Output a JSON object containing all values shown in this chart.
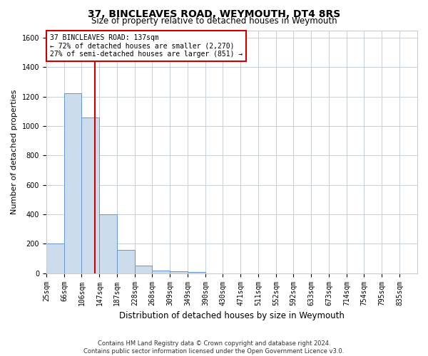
{
  "title": "37, BINCLEAVES ROAD, WEYMOUTH, DT4 8RS",
  "subtitle": "Size of property relative to detached houses in Weymouth",
  "xlabel": "Distribution of detached houses by size in Weymouth",
  "ylabel": "Number of detached properties",
  "bin_labels": [
    "25sqm",
    "66sqm",
    "106sqm",
    "147sqm",
    "187sqm",
    "228sqm",
    "268sqm",
    "309sqm",
    "349sqm",
    "390sqm",
    "430sqm",
    "471sqm",
    "511sqm",
    "552sqm",
    "592sqm",
    "633sqm",
    "673sqm",
    "714sqm",
    "754sqm",
    "795sqm",
    "835sqm"
  ],
  "bin_edges": [
    25,
    66,
    106,
    147,
    187,
    228,
    268,
    309,
    349,
    390,
    430,
    471,
    511,
    552,
    592,
    633,
    673,
    714,
    754,
    795,
    835
  ],
  "bar_heights": [
    200,
    1220,
    1060,
    400,
    160,
    50,
    20,
    15,
    10,
    0,
    0,
    0,
    0,
    0,
    0,
    0,
    0,
    0,
    0,
    0
  ],
  "bar_color": "#cddcec",
  "bar_edge_color": "#6699cc",
  "property_size": 137,
  "vline_color": "#cc0000",
  "annotation_line1": "37 BINCLEAVES ROAD: 137sqm",
  "annotation_line2": "← 72% of detached houses are smaller (2,270)",
  "annotation_line3": "27% of semi-detached houses are larger (851) →",
  "annotation_box_color": "#cc0000",
  "ylim": [
    0,
    1650
  ],
  "yticks": [
    0,
    200,
    400,
    600,
    800,
    1000,
    1200,
    1400,
    1600
  ],
  "footer": "Contains HM Land Registry data © Crown copyright and database right 2024.\nContains public sector information licensed under the Open Government Licence v3.0.",
  "bg_color": "#ffffff",
  "grid_color": "#c8d0da",
  "title_fontsize": 10,
  "subtitle_fontsize": 8.5,
  "ylabel_fontsize": 8,
  "xlabel_fontsize": 8.5,
  "tick_fontsize": 7,
  "annot_fontsize": 7,
  "footer_fontsize": 6
}
